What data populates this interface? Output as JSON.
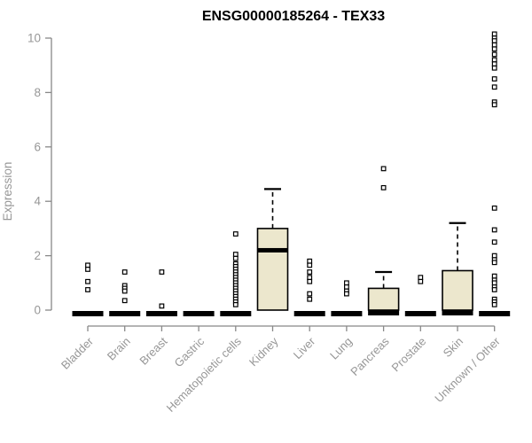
{
  "chart_data": {
    "type": "boxplot",
    "title": "ENSG00000185264 - TEX33",
    "ylabel": "Expression",
    "xlabel": "",
    "ylim": [
      0,
      10
    ],
    "yticks": [
      0,
      2,
      4,
      6,
      8,
      10
    ],
    "grid": false,
    "legend": "none",
    "categories": [
      "Bladder",
      "Brain",
      "Breast",
      "Gastric",
      "Hematopoietic cells",
      "Kidney",
      "Liver",
      "Lung",
      "Pancreas",
      "Prostate",
      "Skin",
      "Unknown / Other"
    ],
    "boxes": [
      {
        "category": "Bladder",
        "whisker_low": 0,
        "q1": 0,
        "median": 0,
        "q3": 0,
        "whisker_high": 0,
        "outliers": [
          1.65,
          1.5,
          1.05,
          0.75
        ]
      },
      {
        "category": "Brain",
        "whisker_low": 0,
        "q1": 0,
        "median": 0,
        "q3": 0,
        "whisker_high": 0,
        "outliers": [
          1.4,
          0.9,
          0.8,
          0.7,
          0.35
        ]
      },
      {
        "category": "Breast",
        "whisker_low": 0,
        "q1": 0,
        "median": 0,
        "q3": 0,
        "whisker_high": 0,
        "outliers": [
          1.4,
          0.15
        ]
      },
      {
        "category": "Gastric",
        "whisker_low": 0,
        "q1": 0,
        "median": 0,
        "q3": 0,
        "whisker_high": 0,
        "outliers": []
      },
      {
        "category": "Hematopoietic cells",
        "whisker_low": 0,
        "q1": 0,
        "median": 0,
        "q3": 0,
        "whisker_high": 0,
        "outliers": [
          2.8,
          2.05,
          1.9,
          1.7,
          1.6,
          1.5,
          1.4,
          1.3,
          1.2,
          1.1,
          1.0,
          0.9,
          0.8,
          0.7,
          0.6,
          0.5,
          0.4,
          0.3,
          0.2
        ]
      },
      {
        "category": "Kidney",
        "whisker_low": 0,
        "q1": 0,
        "median": 2.2,
        "q3": 3.0,
        "whisker_high": 4.45,
        "outliers": []
      },
      {
        "category": "Liver",
        "whisker_low": 0,
        "q1": 0,
        "median": 0,
        "q3": 0,
        "whisker_high": 0,
        "outliers": [
          1.8,
          1.65,
          1.4,
          1.2,
          1.05,
          0.6,
          0.4
        ]
      },
      {
        "category": "Lung",
        "whisker_low": 0,
        "q1": 0,
        "median": 0,
        "q3": 0,
        "whisker_high": 0,
        "outliers": [
          1.0,
          0.85,
          0.7,
          0.6
        ]
      },
      {
        "category": "Pancreas",
        "whisker_low": 0,
        "q1": 0,
        "median": 0,
        "q3": 0.8,
        "whisker_high": 1.4,
        "outliers": [
          5.2,
          4.5
        ]
      },
      {
        "category": "Prostate",
        "whisker_low": 0,
        "q1": 0,
        "median": 0,
        "q3": 0,
        "whisker_high": 0,
        "outliers": [
          1.2,
          1.05
        ]
      },
      {
        "category": "Skin",
        "whisker_low": 0,
        "q1": 0,
        "median": 0,
        "q3": 1.45,
        "whisker_high": 3.2,
        "outliers": []
      },
      {
        "category": "Unknown / Other",
        "whisker_low": 0,
        "q1": 0,
        "median": 0,
        "q3": 0,
        "whisker_high": 0,
        "outliers": [
          10.15,
          10.0,
          9.9,
          9.75,
          9.6,
          9.4,
          9.2,
          9.05,
          8.9,
          8.5,
          8.2,
          7.65,
          7.55,
          3.75,
          2.95,
          2.5,
          2.0,
          1.85,
          1.75,
          1.25,
          1.1,
          1.0,
          0.85,
          0.75,
          0.4,
          0.3,
          0.2
        ]
      }
    ],
    "colors": {
      "background": "#ffffff",
      "box_fill": "#ece7cd",
      "box_border": "#000000",
      "median": "#000000",
      "whisker": "#000000",
      "outlier": "#000000",
      "axis": "#888888",
      "tick_label": "#979797",
      "title": "#000000"
    }
  }
}
